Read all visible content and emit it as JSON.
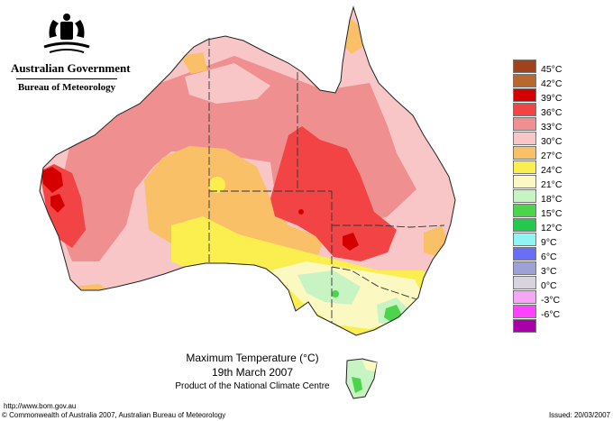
{
  "header": {
    "agency": "Australian Government",
    "bureau": "Bureau of Meteorology",
    "crest_icon": "coat-of-arms-icon"
  },
  "legend": [
    {
      "label": "45°C",
      "color": "#a0421a"
    },
    {
      "label": "42°C",
      "color": "#b8672e"
    },
    {
      "label": "39°C",
      "color": "#d40000"
    },
    {
      "label": "36°C",
      "color": "#f24444"
    },
    {
      "label": "33°C",
      "color": "#f08f8f"
    },
    {
      "label": "30°C",
      "color": "#f8c6c6"
    },
    {
      "label": "27°C",
      "color": "#f9c068"
    },
    {
      "label": "24°C",
      "color": "#faef4e"
    },
    {
      "label": "21°C",
      "color": "#fbf8c2"
    },
    {
      "label": "18°C",
      "color": "#c8f4c4"
    },
    {
      "label": "15°C",
      "color": "#4cd44c"
    },
    {
      "label": "12°C",
      "color": "#25c84f"
    },
    {
      "label": "9°C",
      "color": "#8ef4f4"
    },
    {
      "label": "6°C",
      "color": "#6a6ef5"
    },
    {
      "label": "3°C",
      "color": "#9ea1d8"
    },
    {
      "label": "0°C",
      "color": "#d8d4dd"
    },
    {
      "label": "-3°C",
      "color": "#f6a6f6"
    },
    {
      "label": "-6°C",
      "color": "#ff42ff"
    },
    {
      "label": "",
      "color": "#aa00aa"
    }
  ],
  "caption": {
    "title": "Maximum Temperature (°C)",
    "date": "19th March 2007",
    "product": "Product of the National Climate Centre"
  },
  "footer": {
    "url": "http://www.bom.gov.au",
    "copyright": "© Commonwealth of Australia 2007, Australian Bureau of Meteorology",
    "issued": "Issued: 20/03/2007"
  }
}
